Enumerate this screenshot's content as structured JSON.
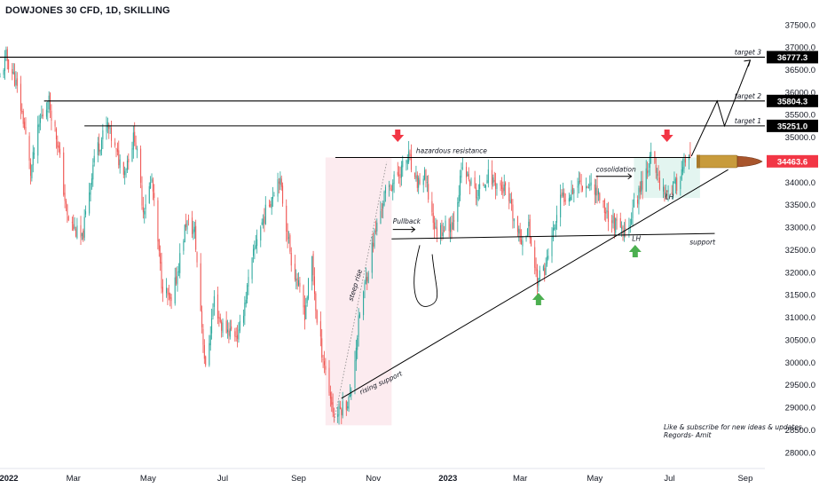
{
  "header": {
    "title": "DOWJONES 30 CFD, 1D, SKILLING"
  },
  "chart_data": {
    "type": "candlestick",
    "title": "DOWJONES 30 CFD, 1D, SKILLING",
    "y_ticks": [
      37500,
      37000,
      36500,
      36000,
      35500,
      35000,
      34500,
      34000,
      33500,
      33000,
      32500,
      32000,
      31500,
      31000,
      30500,
      30000,
      29500,
      29000,
      28500,
      28000
    ],
    "y_tick_labels": [
      "37500.0",
      "37000.0",
      "36500.0",
      "36000.0",
      "35500.0",
      "35000.0",
      "34500.0",
      "34000.0",
      "33500.0",
      "33000.0",
      "32500.0",
      "32000.0",
      "31500.0",
      "31000.0",
      "30500.0",
      "30000.0",
      "29500.0",
      "29000.0",
      "28500.0",
      "28000.0"
    ],
    "ylim": [
      27700,
      37850
    ],
    "x_ticks": [
      {
        "label": "2022",
        "date": "2022-01-01",
        "bold": true
      },
      {
        "label": "Mar",
        "date": "2022-03-01",
        "bold": false
      },
      {
        "label": "May",
        "date": "2022-05-01",
        "bold": false
      },
      {
        "label": "Jul",
        "date": "2022-07-01",
        "bold": false
      },
      {
        "label": "Sep",
        "date": "2022-09-01",
        "bold": false
      },
      {
        "label": "Nov",
        "date": "2022-11-01",
        "bold": false
      },
      {
        "label": "2023",
        "date": "2023-01-01",
        "bold": true
      },
      {
        "label": "Mar",
        "date": "2023-03-01",
        "bold": false
      },
      {
        "label": "May",
        "date": "2023-05-01",
        "bold": false
      },
      {
        "label": "Jul",
        "date": "2023-07-01",
        "bold": false
      },
      {
        "label": "Sep",
        "date": "2023-09-01",
        "bold": false
      }
    ],
    "xlim": [
      "2021-12-31",
      "2023-09-17"
    ],
    "price_path": [
      [
        "2021-12-31",
        36300
      ],
      [
        "2022-01-05",
        36780
      ],
      [
        "2022-01-12",
        36300
      ],
      [
        "2022-01-19",
        35400
      ],
      [
        "2022-01-25",
        34200
      ],
      [
        "2022-02-02",
        35400
      ],
      [
        "2022-02-09",
        35800
      ],
      [
        "2022-02-16",
        34900
      ],
      [
        "2022-02-24",
        33200
      ],
      [
        "2022-03-08",
        32700
      ],
      [
        "2022-03-18",
        34600
      ],
      [
        "2022-03-29",
        35250
      ],
      [
        "2022-04-06",
        34550
      ],
      [
        "2022-04-12",
        34300
      ],
      [
        "2022-04-20",
        35050
      ],
      [
        "2022-04-27",
        33400
      ],
      [
        "2022-05-04",
        34050
      ],
      [
        "2022-05-12",
        31800
      ],
      [
        "2022-05-20",
        31250
      ],
      [
        "2022-06-01",
        33100
      ],
      [
        "2022-06-08",
        32900
      ],
      [
        "2022-06-17",
        29800
      ],
      [
        "2022-06-24",
        31400
      ],
      [
        "2022-06-30",
        30800
      ],
      [
        "2022-07-14",
        30600
      ],
      [
        "2022-07-29",
        32800
      ],
      [
        "2022-08-16",
        34150
      ],
      [
        "2022-08-26",
        32300
      ],
      [
        "2022-09-06",
        31100
      ],
      [
        "2022-09-12",
        32300
      ],
      [
        "2022-09-16",
        30850
      ],
      [
        "2022-09-30",
        28800
      ],
      [
        "2022-10-13",
        29200
      ],
      [
        "2022-10-21",
        31100
      ],
      [
        "2022-11-01",
        32700
      ],
      [
        "2022-11-10",
        33700
      ],
      [
        "2022-11-30",
        34550
      ],
      [
        "2022-12-05",
        33950
      ],
      [
        "2022-12-13",
        34100
      ],
      [
        "2022-12-22",
        32900
      ],
      [
        "2023-01-05",
        33100
      ],
      [
        "2023-01-13",
        34300
      ],
      [
        "2023-01-25",
        33700
      ],
      [
        "2023-02-02",
        34150
      ],
      [
        "2023-02-17",
        33800
      ],
      [
        "2023-03-01",
        32700
      ],
      [
        "2023-03-08",
        33000
      ],
      [
        "2023-03-15",
        31800
      ],
      [
        "2023-03-22",
        32150
      ],
      [
        "2023-04-03",
        33600
      ],
      [
        "2023-04-18",
        34000
      ],
      [
        "2023-05-01",
        33900
      ],
      [
        "2023-05-11",
        33300
      ],
      [
        "2023-05-25",
        32800
      ],
      [
        "2023-06-05",
        33700
      ],
      [
        "2023-06-16",
        34550
      ],
      [
        "2023-06-26",
        33800
      ],
      [
        "2023-07-06",
        33900
      ],
      [
        "2023-07-13",
        34400
      ],
      [
        "2023-07-18",
        34460
      ]
    ],
    "last_price": 34463.6,
    "last_price_label": "34463.6",
    "levels": [
      {
        "name": "target 1",
        "value": 35251.0,
        "label": "35251.0",
        "from": "2022-03-10"
      },
      {
        "name": "target 2",
        "value": 35804.3,
        "label": "35804.3",
        "from": "2022-02-05"
      },
      {
        "name": "target 3",
        "value": 36777.3,
        "label": "36777.3",
        "from": "2021-12-31"
      }
    ],
    "annotations": {
      "hazardous_resistance": {
        "text": "hazardous resistance",
        "value": 34550
      },
      "support": {
        "text": "support",
        "value": 32800
      },
      "pullback": {
        "text": "Pullback"
      },
      "cosolidation": {
        "text": "cosolidation"
      },
      "steep_rise": {
        "text": "steep rise"
      },
      "rising_support": {
        "text": "rising support"
      },
      "lh_labels": [
        "LH",
        "LH"
      ]
    },
    "footer_lines": [
      "Like & subscribe for new ideas & updates",
      "Regords- Amit"
    ],
    "colors": {
      "up": "#26a69a",
      "down": "#ef5350",
      "background": "#ffffff",
      "text": "#131722",
      "price_badge": "#f23645",
      "level_badge": "#000000",
      "arrow_up": "#4caf50",
      "arrow_down": "#f23645",
      "zone_rise": "#fce8ec",
      "zone_consolidation": "#e0f4ee"
    },
    "grid": false
  }
}
